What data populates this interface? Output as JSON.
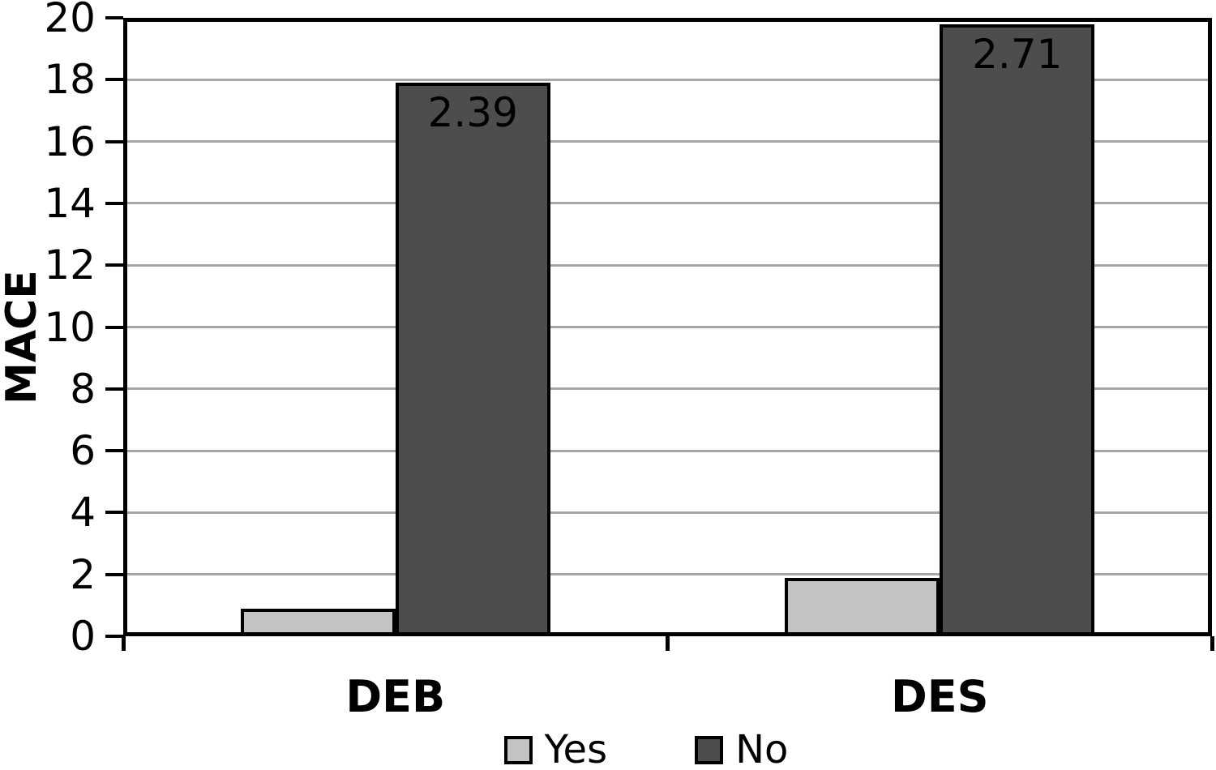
{
  "chart_data": {
    "type": "bar",
    "title": "",
    "xlabel": "",
    "ylabel": "MACE",
    "categories": [
      "DEB",
      "DES"
    ],
    "series": [
      {
        "name": "Yes",
        "color": "#c3c3c3",
        "values": [
          0.9,
          1.9
        ],
        "labels": [
          "",
          ""
        ]
      },
      {
        "name": "No",
        "color": "#4d4d4d",
        "values": [
          17.9,
          19.8
        ],
        "labels": [
          "2.39",
          "2.71"
        ]
      }
    ],
    "ylim": [
      0,
      20
    ],
    "yticks": [
      0,
      2,
      4,
      6,
      8,
      10,
      12,
      14,
      16,
      18,
      20
    ],
    "grid": "horizontal",
    "gridline_color": "#a6a6a6",
    "axis_color": "#000000",
    "bar_label_color": "#000000",
    "legend_position": "bottom",
    "legend_entries": [
      "Yes",
      "No"
    ]
  }
}
